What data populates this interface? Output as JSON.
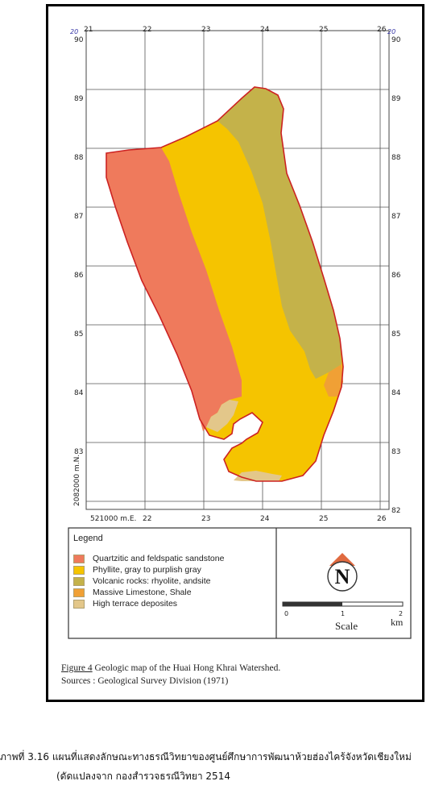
{
  "map": {
    "x_labels": [
      "21",
      "22",
      "23",
      "24",
      "25",
      "26"
    ],
    "y_labels_left": [
      "90",
      "89",
      "88",
      "87",
      "86",
      "85",
      "84",
      "83",
      "82"
    ],
    "y_labels_right": [
      "90",
      "89",
      "88",
      "87",
      "86",
      "85",
      "84",
      "83",
      "82"
    ],
    "bottom_labels": [
      "22",
      "23",
      "24",
      "25",
      "26"
    ],
    "corner_top_left": "20",
    "corner_top_right": "20",
    "easting_label": "521000 m.E.",
    "northing_label": "2082000 m.N.",
    "colors": {
      "sandstone": "#ef7a5c",
      "phyllite": "#f5c400",
      "volcanic": "#c4b24a",
      "limestone": "#f0a035",
      "terrace": "#e3c78a",
      "boundary": "#cc2222",
      "grid": "#555555"
    }
  },
  "legend": {
    "title": "Legend",
    "items": [
      {
        "label": "Quartzitic and feldspatic sandstone",
        "color": "#ef7a5c"
      },
      {
        "label": "Phyllite, gray to purplish gray",
        "color": "#f5c400"
      },
      {
        "label": "Volcanic rocks: rhyolite, andsite",
        "color": "#c4b24a"
      },
      {
        "label": "Massive Limestone, Shale",
        "color": "#f0a035"
      },
      {
        "label": "High terrace deposites",
        "color": "#e3c78a"
      }
    ]
  },
  "north_arrow": {
    "letter": "N"
  },
  "scale": {
    "ticks": [
      "0",
      "1",
      "2"
    ],
    "unit": "km",
    "title": "Scale"
  },
  "figure_caption": {
    "label": "Figure 4",
    "title": "Geologic map of the Huai Hong Khrai Watershed.",
    "sources": "Sources : Geological Survey Division (1971)"
  },
  "thai_caption": {
    "line1": "ภาพที่ 3.16 แผนที่แสดงลักษณะทางธรณีวิทยาของศูนย์ศึกษาการพัฒนาห้วยฮ่องไคร้จังหวัดเชียงใหม่",
    "line2": "(ดัดแปลงจาก กองสำรวจธรณีวิทยา 2514"
  }
}
